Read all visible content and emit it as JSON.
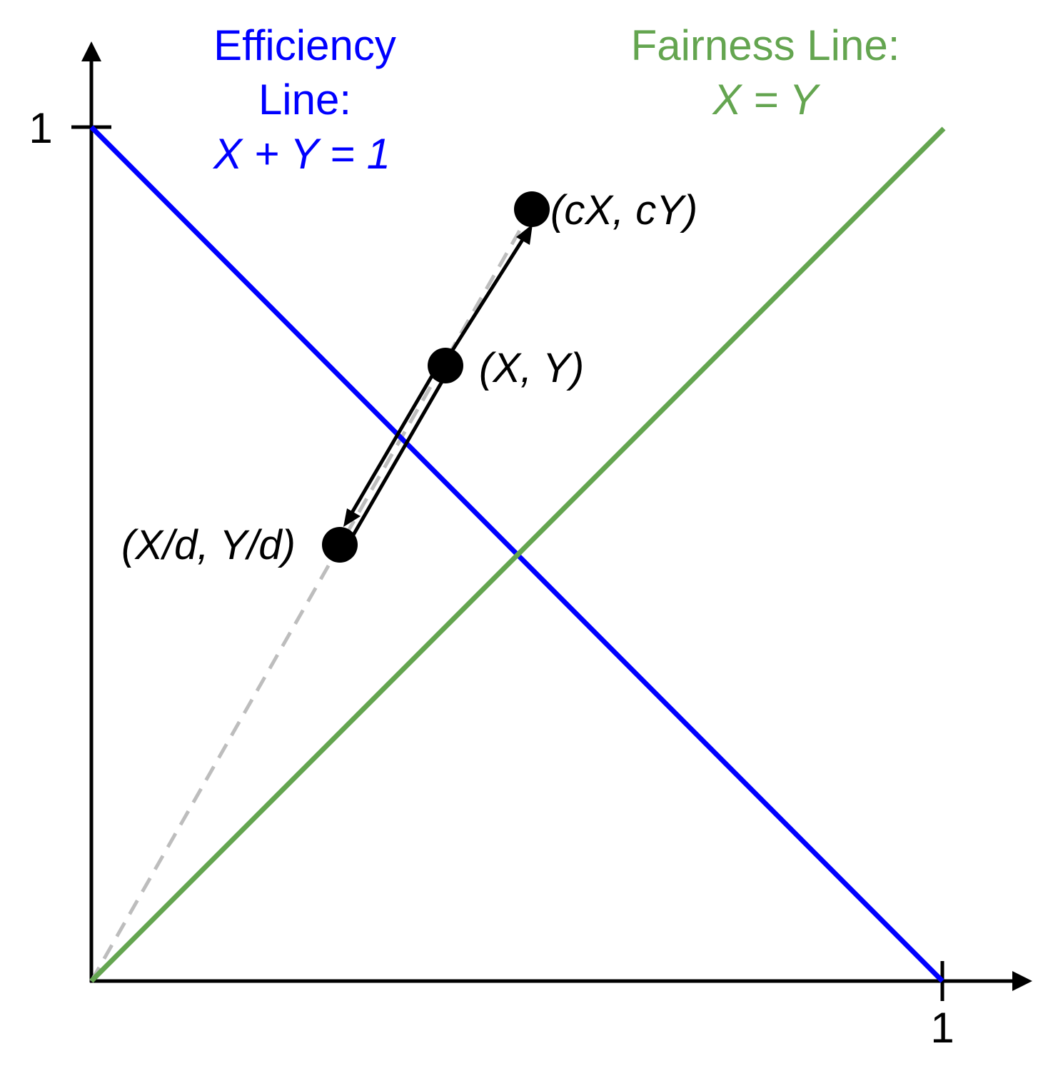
{
  "colors": {
    "efficiency": "#0000ff",
    "fairness": "#64a550",
    "axis": "#000000",
    "dashed": "#bdbdbd",
    "point": "#000000"
  },
  "axes": {
    "x_tick_label": "1",
    "y_tick_label": "1"
  },
  "efficiency": {
    "title_line1": "Efficiency",
    "title_line2": "Line:",
    "equation": "X + Y = 1"
  },
  "fairness": {
    "title": "Fairness Line:",
    "equation": "X = Y"
  },
  "points": {
    "scaled_up": {
      "label": "(cX, cY)",
      "x": 0.517,
      "y": 0.905
    },
    "original": {
      "label": "(X, Y)",
      "x": 0.417,
      "y": 0.722
    },
    "scaled_down": {
      "label": "(X/d, Y/d)",
      "x": 0.293,
      "y": 0.512
    }
  }
}
